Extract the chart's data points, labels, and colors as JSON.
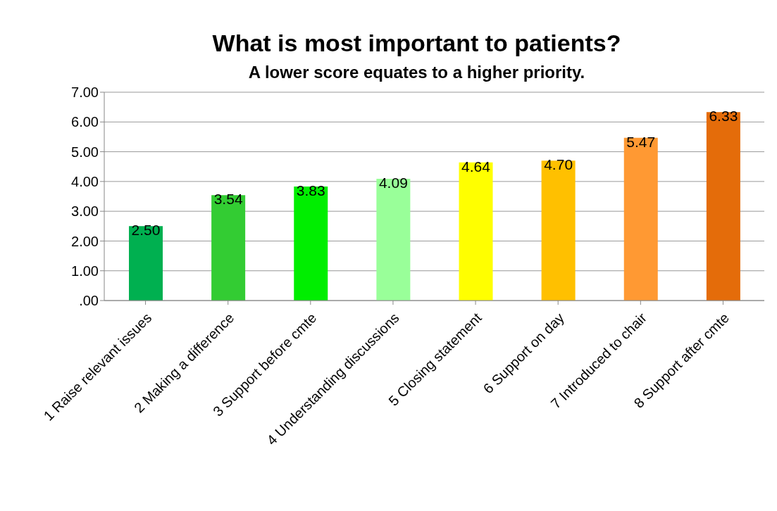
{
  "chart_data": {
    "type": "bar",
    "title": "What is most important to patients?",
    "subtitle": "A lower score equates to a higher priority.",
    "categories": [
      "1 Raise relevant issues",
      "2 Making a difference",
      "3 Support before cmte",
      "4 Understanding discussions",
      "5 Closing statement",
      "6 Support on day",
      "7 Introduced to chair",
      "8 Support after cmte"
    ],
    "values": [
      2.5,
      3.54,
      3.83,
      4.09,
      4.64,
      4.7,
      5.47,
      6.33
    ],
    "value_labels": [
      "2.50",
      "3.54",
      "3.83",
      "4.09",
      "4.64",
      "4.70",
      "5.47",
      "6.33"
    ],
    "colors": [
      "#00b050",
      "#33cc33",
      "#00ee00",
      "#99ff99",
      "#ffff00",
      "#ffc000",
      "#ff9933",
      "#e46c0a"
    ],
    "ylim": [
      0,
      7
    ],
    "yticks": [
      {
        "value": 0,
        "label": ".00"
      },
      {
        "value": 1,
        "label": "1.00"
      },
      {
        "value": 2,
        "label": "2.00"
      },
      {
        "value": 3,
        "label": "3.00"
      },
      {
        "value": 4,
        "label": "4.00"
      },
      {
        "value": 5,
        "label": "5.00"
      },
      {
        "value": 6,
        "label": "6.00"
      },
      {
        "value": 7,
        "label": "7.00"
      }
    ],
    "grid": "y"
  }
}
